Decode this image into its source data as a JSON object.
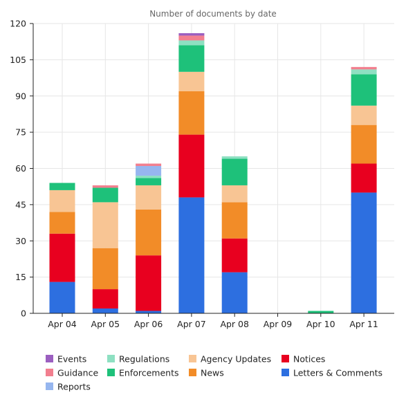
{
  "chart_data": {
    "type": "bar",
    "stacked": true,
    "title": "Number of documents by date",
    "xlabel": "",
    "ylabel": "",
    "ylim": [
      0,
      120
    ],
    "yticks": [
      0,
      15,
      30,
      45,
      60,
      75,
      90,
      105,
      120
    ],
    "grid": true,
    "legend_position": "bottom",
    "categories": [
      "Apr 04",
      "Apr 05",
      "Apr 06",
      "Apr 07",
      "Apr 08",
      "Apr 09",
      "Apr 10",
      "Apr 11"
    ],
    "series": [
      {
        "name": "Letters & Comments",
        "color": "#2d6fe0",
        "values": [
          13,
          2,
          1,
          48,
          17,
          0,
          0,
          50
        ]
      },
      {
        "name": "Notices",
        "color": "#e8001f",
        "values": [
          20,
          8,
          23,
          26,
          14,
          0,
          0,
          12
        ]
      },
      {
        "name": "News",
        "color": "#f28c28",
        "values": [
          9,
          17,
          19,
          18,
          15,
          0,
          0,
          16
        ]
      },
      {
        "name": "Agency Updates",
        "color": "#f8c594",
        "values": [
          9,
          19,
          10,
          8,
          7,
          0,
          0,
          8
        ]
      },
      {
        "name": "Enforcements",
        "color": "#1ec17a",
        "values": [
          3,
          6,
          3,
          11,
          11,
          0,
          1,
          13
        ]
      },
      {
        "name": "Regulations",
        "color": "#8ee0c2",
        "values": [
          0,
          0,
          1,
          2,
          1,
          0,
          0,
          2
        ]
      },
      {
        "name": "Reports",
        "color": "#96b6ef",
        "values": [
          0,
          0,
          4,
          0,
          0,
          0,
          0,
          0
        ]
      },
      {
        "name": "Guidance",
        "color": "#f27f8f",
        "values": [
          0,
          1,
          1,
          2,
          0,
          0,
          0,
          1
        ]
      },
      {
        "name": "Events",
        "color": "#9b5fc0",
        "values": [
          0,
          0,
          0,
          1,
          0,
          0,
          0,
          0
        ]
      }
    ],
    "legend_order": [
      "Events",
      "Guidance",
      "Reports",
      "Regulations",
      "Enforcements",
      "Agency Updates",
      "News",
      "Notices",
      "Letters & Comments"
    ]
  }
}
